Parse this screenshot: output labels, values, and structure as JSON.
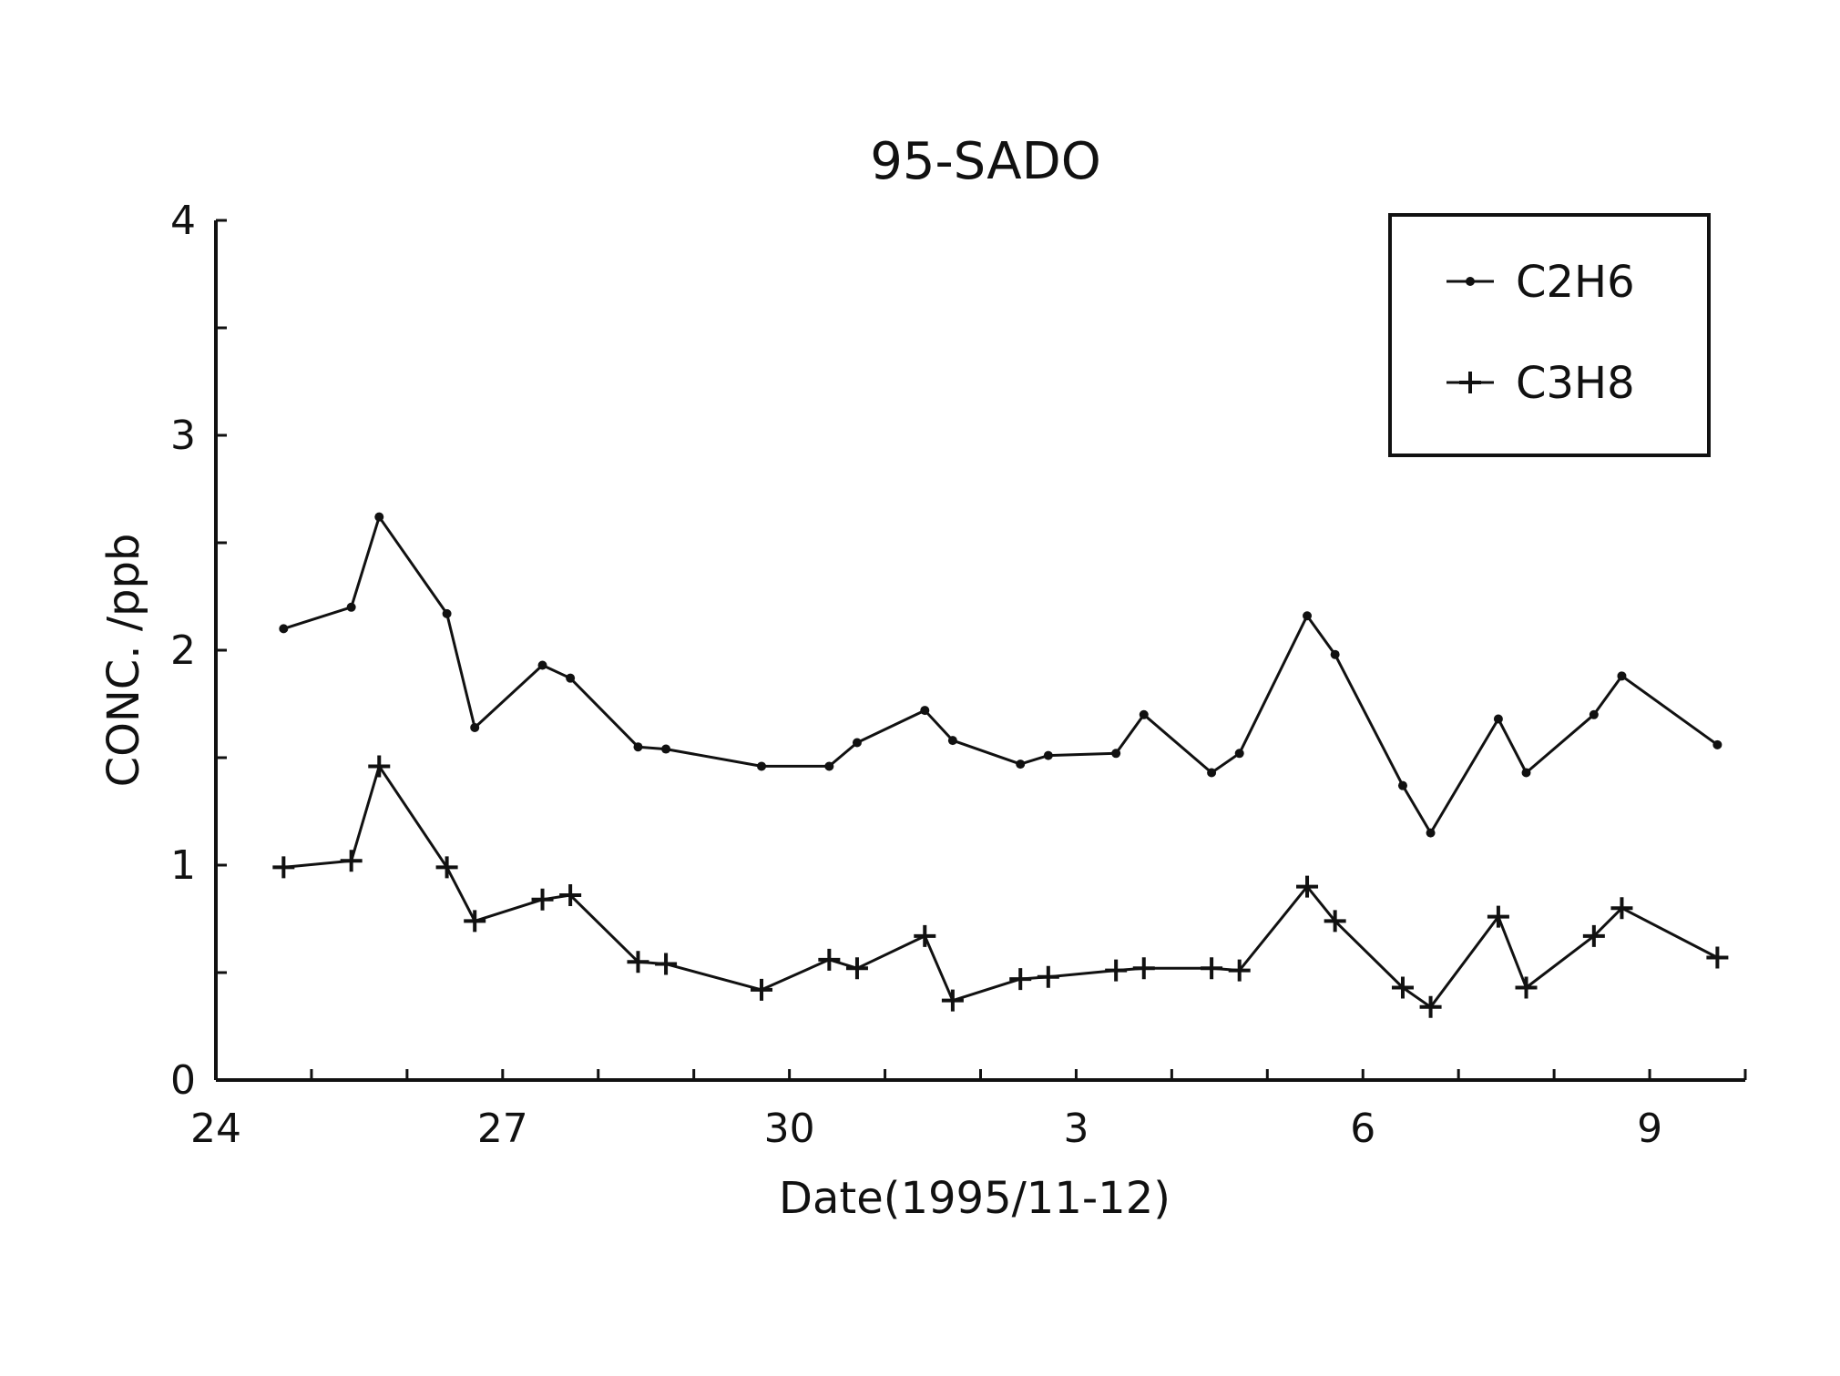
{
  "chart_data": {
    "type": "line",
    "title": "95-SADO",
    "xlabel": "Date(1995/11-12)",
    "ylabel": "CONC. /ppb",
    "xlim": [
      "1995-11-24",
      "1995-12-10"
    ],
    "ylim": [
      0,
      4
    ],
    "x_tick_labels": [
      "24",
      "27",
      "30",
      "3",
      "6",
      "9"
    ],
    "y_tick_labels": [
      "0",
      "1",
      "2",
      "3",
      "4"
    ],
    "grid": false,
    "legend_position": "top-right",
    "line_color": "#111111",
    "series": [
      {
        "name": "C2H6",
        "marker": "dot",
        "points": [
          {
            "x": "1995-11-24 17:00",
            "y": 2.1
          },
          {
            "x": "1995-11-25 10:00",
            "y": 2.2
          },
          {
            "x": "1995-11-25 17:00",
            "y": 2.62
          },
          {
            "x": "1995-11-26 10:00",
            "y": 2.17
          },
          {
            "x": "1995-11-26 17:00",
            "y": 1.64
          },
          {
            "x": "1995-11-27 10:00",
            "y": 1.93
          },
          {
            "x": "1995-11-27 17:00",
            "y": 1.87
          },
          {
            "x": "1995-11-28 10:00",
            "y": 1.55
          },
          {
            "x": "1995-11-28 17:00",
            "y": 1.54
          },
          {
            "x": "1995-11-29 17:00",
            "y": 1.46
          },
          {
            "x": "1995-11-30 10:00",
            "y": 1.46
          },
          {
            "x": "1995-11-30 17:00",
            "y": 1.57
          },
          {
            "x": "1995-12-01 10:00",
            "y": 1.72
          },
          {
            "x": "1995-12-01 17:00",
            "y": 1.58
          },
          {
            "x": "1995-12-02 10:00",
            "y": 1.47
          },
          {
            "x": "1995-12-02 17:00",
            "y": 1.51
          },
          {
            "x": "1995-12-03 10:00",
            "y": 1.52
          },
          {
            "x": "1995-12-03 17:00",
            "y": 1.7
          },
          {
            "x": "1995-12-04 10:00",
            "y": 1.43
          },
          {
            "x": "1995-12-04 17:00",
            "y": 1.52
          },
          {
            "x": "1995-12-05 10:00",
            "y": 2.16
          },
          {
            "x": "1995-12-05 17:00",
            "y": 1.98
          },
          {
            "x": "1995-12-06 10:00",
            "y": 1.37
          },
          {
            "x": "1995-12-06 17:00",
            "y": 1.15
          },
          {
            "x": "1995-12-07 10:00",
            "y": 1.68
          },
          {
            "x": "1995-12-07 17:00",
            "y": 1.43
          },
          {
            "x": "1995-12-08 10:00",
            "y": 1.7
          },
          {
            "x": "1995-12-08 17:00",
            "y": 1.88
          },
          {
            "x": "1995-12-09 17:00",
            "y": 1.56
          }
        ]
      },
      {
        "name": "C3H8",
        "marker": "plus",
        "points": [
          {
            "x": "1995-11-24 17:00",
            "y": 0.99
          },
          {
            "x": "1995-11-25 10:00",
            "y": 1.02
          },
          {
            "x": "1995-11-25 17:00",
            "y": 1.46
          },
          {
            "x": "1995-11-26 10:00",
            "y": 0.99
          },
          {
            "x": "1995-11-26 17:00",
            "y": 0.74
          },
          {
            "x": "1995-11-27 10:00",
            "y": 0.84
          },
          {
            "x": "1995-11-27 17:00",
            "y": 0.86
          },
          {
            "x": "1995-11-28 10:00",
            "y": 0.55
          },
          {
            "x": "1995-11-28 17:00",
            "y": 0.54
          },
          {
            "x": "1995-11-29 17:00",
            "y": 0.42
          },
          {
            "x": "1995-11-30 10:00",
            "y": 0.56
          },
          {
            "x": "1995-11-30 17:00",
            "y": 0.52
          },
          {
            "x": "1995-12-01 10:00",
            "y": 0.67
          },
          {
            "x": "1995-12-01 17:00",
            "y": 0.37
          },
          {
            "x": "1995-12-02 10:00",
            "y": 0.47
          },
          {
            "x": "1995-12-02 17:00",
            "y": 0.48
          },
          {
            "x": "1995-12-03 10:00",
            "y": 0.51
          },
          {
            "x": "1995-12-03 17:00",
            "y": 0.52
          },
          {
            "x": "1995-12-04 10:00",
            "y": 0.52
          },
          {
            "x": "1995-12-04 17:00",
            "y": 0.51
          },
          {
            "x": "1995-12-05 10:00",
            "y": 0.9
          },
          {
            "x": "1995-12-05 17:00",
            "y": 0.74
          },
          {
            "x": "1995-12-06 10:00",
            "y": 0.43
          },
          {
            "x": "1995-12-06 17:00",
            "y": 0.34
          },
          {
            "x": "1995-12-07 10:00",
            "y": 0.76
          },
          {
            "x": "1995-12-07 17:00",
            "y": 0.43
          },
          {
            "x": "1995-12-08 10:00",
            "y": 0.67
          },
          {
            "x": "1995-12-08 17:00",
            "y": 0.8
          },
          {
            "x": "1995-12-09 17:00",
            "y": 0.57
          }
        ]
      }
    ]
  }
}
